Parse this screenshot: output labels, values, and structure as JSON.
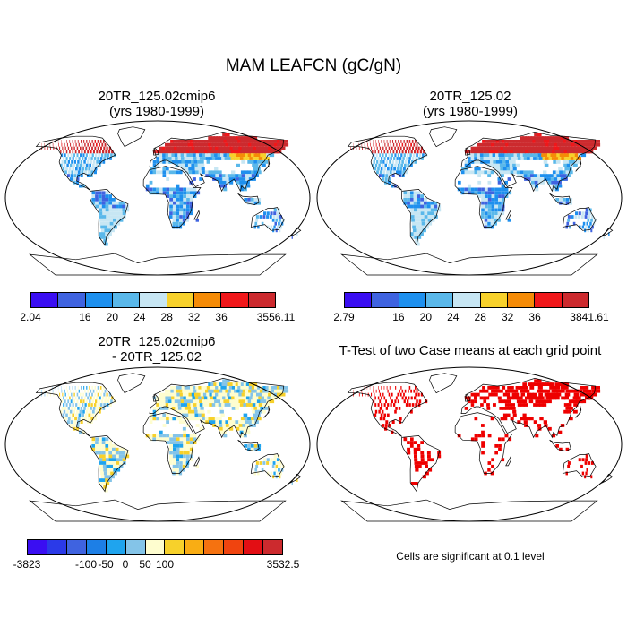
{
  "chart_data": {
    "type": "map",
    "title": "MAM LEAFCN (gC/gN)",
    "panels": [
      {
        "title_line1": "20TR_125.02cmip6",
        "title_line2": "(yrs 1980-1999)",
        "colorbar_ticks": [
          "2.04",
          "16",
          "20",
          "24",
          "28",
          "32",
          "36",
          "3556.11"
        ],
        "colors": [
          "#3a0ef2",
          "#3f63e0",
          "#1e90ee",
          "#5ab8ea",
          "#c7e6f3",
          "#f7d12b",
          "#f58b06",
          "#f0171a",
          "#cc2a2e"
        ]
      },
      {
        "title_line1": "20TR_125.02",
        "title_line2": "(yrs 1980-1999)",
        "colorbar_ticks": [
          "2.79",
          "16",
          "20",
          "24",
          "28",
          "32",
          "36",
          "3841.61"
        ],
        "colors": [
          "#3a0ef2",
          "#3f63e0",
          "#1e90ee",
          "#5ab8ea",
          "#c7e6f3",
          "#f7d12b",
          "#f58b06",
          "#f0171a",
          "#cc2a2e"
        ]
      },
      {
        "title_line1": "20TR_125.02cmip6",
        "title_line2": "- 20TR_125.02",
        "colorbar_ticks": [
          "-3823",
          "-100",
          "-50",
          "0",
          "50",
          "100",
          "3532.5"
        ],
        "colors": [
          "#3a0ef2",
          "#2b3ae8",
          "#3f63e0",
          "#1d7fe6",
          "#1fa4ee",
          "#84c4e8",
          "#fefdcf",
          "#f7d12b",
          "#f9ad14",
          "#f57210",
          "#f0440f",
          "#e30e14",
          "#cc2a2e"
        ]
      },
      {
        "title_line1": "T-Test of two Case means at each grid point",
        "title_line2": "",
        "note": "Cells are significant at 0.1 level",
        "colors": [
          "#ee0000"
        ]
      }
    ]
  }
}
